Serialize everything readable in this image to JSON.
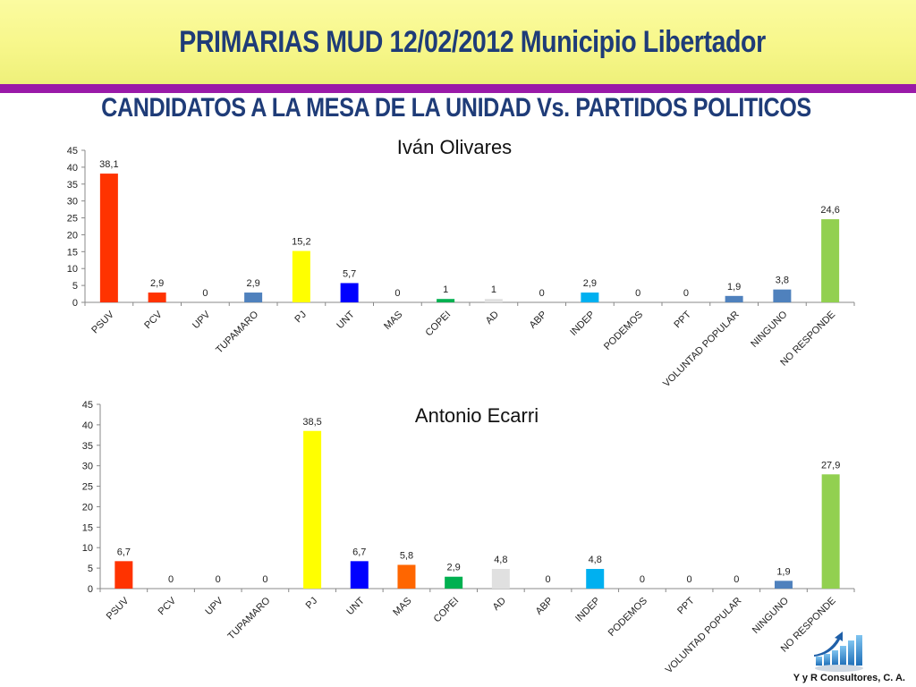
{
  "header": {
    "title": "PRIMARIAS MUD 12/02/2012  Municipio Libertador",
    "subtitle": "CANDIDATOS A LA MESA DE LA UNIDAD Vs. PARTIDOS POLITICOS"
  },
  "footer": {
    "credit": "Y y R Consultores, C. A."
  },
  "logo": {
    "icon": "rising-bar-chart-with-arrow-icon"
  },
  "chart_data": [
    {
      "type": "bar",
      "title": "Iván Olivares",
      "categories": [
        "PSUV",
        "PCV",
        "UPV",
        "TUPAMARO",
        "PJ",
        "UNT",
        "MAS",
        "COPEI",
        "AD",
        "ABP",
        "INDEP",
        "PODEMOS",
        "PPT",
        "VOLUNTAD POPULAR",
        "NINGUNO",
        "NO RESPONDE"
      ],
      "values": [
        38.1,
        2.9,
        0,
        2.9,
        15.2,
        5.7,
        0,
        1,
        1,
        0,
        2.9,
        0,
        0,
        1.9,
        3.8,
        24.6
      ],
      "value_labels": [
        "38,1",
        "2,9",
        "0",
        "2,9",
        "15,2",
        "5,7",
        "0",
        "1",
        "1",
        "0",
        "2,9",
        "0",
        "0",
        "1,9",
        "3,8",
        "24,6"
      ],
      "colors": [
        "#ff3300",
        "#ff3300",
        "#4f81bd",
        "#4f81bd",
        "#ffff00",
        "#0000ff",
        "#ff6600",
        "#00b050",
        "#e0e0e0",
        "#4f81bd",
        "#00b0f0",
        "#4f81bd",
        "#4f81bd",
        "#4f81bd",
        "#4f81bd",
        "#92d050"
      ],
      "ylim": [
        0,
        45
      ],
      "yticks": [
        0,
        5,
        10,
        15,
        20,
        25,
        30,
        35,
        40,
        45
      ],
      "grid": false,
      "legend": "none"
    },
    {
      "type": "bar",
      "title": "Antonio Ecarri",
      "categories": [
        "PSUV",
        "PCV",
        "UPV",
        "TUPAMARO",
        "PJ",
        "UNT",
        "MAS",
        "COPEI",
        "AD",
        "ABP",
        "INDEP",
        "PODEMOS",
        "PPT",
        "VOLUNTAD POPULAR",
        "NINGUNO",
        "NO RESPONDE"
      ],
      "values": [
        6.7,
        0,
        0,
        0,
        38.5,
        6.7,
        5.8,
        2.9,
        4.8,
        0,
        4.8,
        0,
        0,
        0,
        1.9,
        27.9
      ],
      "value_labels": [
        "6,7",
        "0",
        "0",
        "0",
        "38,5",
        "6,7",
        "5,8",
        "2,9",
        "4,8",
        "0",
        "4,8",
        "0",
        "0",
        "0",
        "1,9",
        "27,9"
      ],
      "colors": [
        "#ff3300",
        "#ff3300",
        "#4f81bd",
        "#4f81bd",
        "#ffff00",
        "#0000ff",
        "#ff6600",
        "#00b050",
        "#e0e0e0",
        "#4f81bd",
        "#00b0f0",
        "#4f81bd",
        "#4f81bd",
        "#4f81bd",
        "#4f81bd",
        "#92d050"
      ],
      "ylim": [
        0,
        45
      ],
      "yticks": [
        0,
        5,
        10,
        15,
        20,
        25,
        30,
        35,
        40,
        45
      ],
      "grid": false,
      "legend": "none"
    }
  ]
}
